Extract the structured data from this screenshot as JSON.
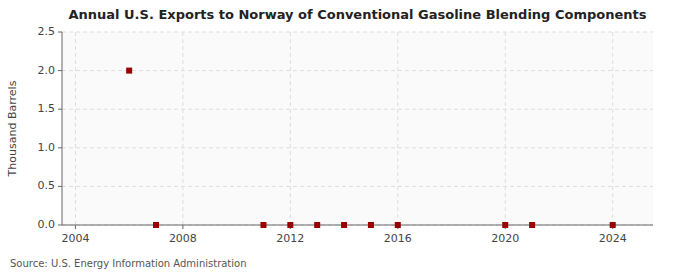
{
  "chart_data": {
    "type": "scatter",
    "title": "Annual U.S. Exports to Norway of Conventional Gasoline Blending Components",
    "y_label": "Thousand Barrels",
    "source": "Source: U.S. Energy Information Administration",
    "x": [
      2006,
      2007,
      2011,
      2012,
      2013,
      2014,
      2015,
      2016,
      2020,
      2021,
      2024
    ],
    "values": [
      2.0,
      0.0,
      0.0,
      0.0,
      0.0,
      0.0,
      0.0,
      0.0,
      0.0,
      0.0,
      0.0
    ],
    "color": "#990000",
    "marker": "square",
    "xlim": [
      2003.5,
      2025.5
    ],
    "xticks": [
      2004,
      2008,
      2012,
      2016,
      2020,
      2024
    ],
    "ylim": [
      0.0,
      2.5
    ],
    "yticks": [
      {
        "value": 0.0,
        "label": "0.0"
      },
      0.5,
      {
        "value": 1.0,
        "label": "1.0"
      },
      1.5,
      {
        "value": 2.0,
        "label": "2.0"
      },
      2.5
    ],
    "grid": true
  }
}
